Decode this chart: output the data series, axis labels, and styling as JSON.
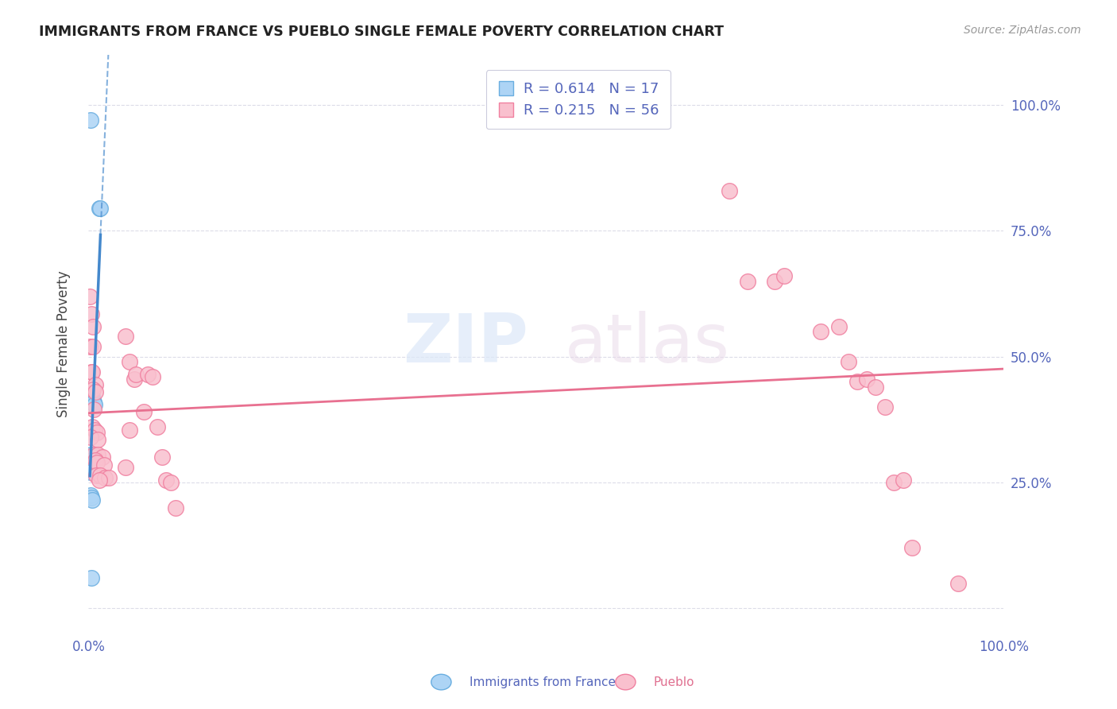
{
  "title": "IMMIGRANTS FROM FRANCE VS PUEBLO SINGLE FEMALE POVERTY CORRELATION CHART",
  "source": "Source: ZipAtlas.com",
  "ylabel": "Single Female Poverty",
  "legend_label1": "Immigrants from France",
  "legend_label2": "Pueblo",
  "r1": "0.614",
  "n1": "17",
  "r2": "0.215",
  "n2": "56",
  "watermark_zip": "ZIP",
  "watermark_atlas": "atlas",
  "blue_color": "#ADD4F5",
  "pink_color": "#F9C0CE",
  "blue_edge_color": "#6AAEE0",
  "pink_edge_color": "#F080A0",
  "blue_line_color": "#4488CC",
  "pink_line_color": "#E87090",
  "blue_scatter": [
    [
      0.2,
      97.0
    ],
    [
      1.2,
      79.5
    ],
    [
      1.3,
      79.5
    ],
    [
      0.4,
      42.0
    ],
    [
      0.45,
      41.5
    ],
    [
      0.6,
      41.0
    ],
    [
      0.65,
      40.5
    ],
    [
      0.2,
      30.5
    ],
    [
      0.5,
      30.0
    ],
    [
      0.3,
      29.5
    ],
    [
      0.4,
      28.5
    ],
    [
      0.15,
      27.5
    ],
    [
      0.2,
      27.0
    ],
    [
      0.25,
      22.5
    ],
    [
      0.3,
      22.0
    ],
    [
      0.4,
      21.5
    ],
    [
      0.3,
      6.0
    ]
  ],
  "pink_scatter": [
    [
      0.1,
      62.0
    ],
    [
      0.3,
      58.5
    ],
    [
      0.5,
      56.0
    ],
    [
      0.1,
      52.0
    ],
    [
      0.5,
      52.0
    ],
    [
      0.3,
      47.0
    ],
    [
      0.4,
      47.0
    ],
    [
      0.7,
      44.5
    ],
    [
      0.5,
      43.5
    ],
    [
      0.7,
      43.0
    ],
    [
      0.6,
      39.5
    ],
    [
      0.4,
      36.0
    ],
    [
      0.65,
      35.5
    ],
    [
      0.9,
      35.0
    ],
    [
      0.2,
      34.0
    ],
    [
      1.0,
      33.5
    ],
    [
      0.6,
      30.5
    ],
    [
      1.0,
      30.5
    ],
    [
      1.5,
      30.0
    ],
    [
      0.7,
      29.5
    ],
    [
      0.9,
      29.0
    ],
    [
      1.7,
      28.5
    ],
    [
      0.8,
      26.5
    ],
    [
      1.3,
      26.5
    ],
    [
      1.8,
      26.0
    ],
    [
      2.2,
      26.0
    ],
    [
      1.2,
      25.5
    ],
    [
      4.0,
      54.0
    ],
    [
      4.5,
      49.0
    ],
    [
      5.0,
      45.5
    ],
    [
      5.2,
      46.5
    ],
    [
      6.0,
      39.0
    ],
    [
      6.5,
      46.5
    ],
    [
      7.0,
      46.0
    ],
    [
      7.5,
      36.0
    ],
    [
      8.0,
      30.0
    ],
    [
      8.5,
      25.5
    ],
    [
      9.0,
      25.0
    ],
    [
      9.5,
      20.0
    ],
    [
      4.0,
      28.0
    ],
    [
      4.5,
      35.5
    ],
    [
      60.0,
      100.0
    ],
    [
      70.0,
      83.0
    ],
    [
      72.0,
      65.0
    ],
    [
      75.0,
      65.0
    ],
    [
      76.0,
      66.0
    ],
    [
      80.0,
      55.0
    ],
    [
      82.0,
      56.0
    ],
    [
      83.0,
      49.0
    ],
    [
      84.0,
      45.0
    ],
    [
      85.0,
      45.5
    ],
    [
      86.0,
      44.0
    ],
    [
      87.0,
      40.0
    ],
    [
      88.0,
      25.0
    ],
    [
      89.0,
      25.5
    ],
    [
      90.0,
      12.0
    ],
    [
      95.0,
      5.0
    ]
  ],
  "xlim": [
    0,
    100
  ],
  "ylim": [
    -5,
    110
  ],
  "xtick_positions": [
    0,
    25,
    50,
    75,
    100
  ],
  "xtick_labels": [
    "0.0%",
    "",
    "",
    "",
    "100.0%"
  ],
  "ytick_positions": [
    0,
    25,
    50,
    75,
    100
  ],
  "ytick_labels_right": [
    "",
    "25.0%",
    "50.0%",
    "75.0%",
    "100.0%"
  ],
  "background_color": "#FFFFFF",
  "grid_color": "#DCDCE8"
}
